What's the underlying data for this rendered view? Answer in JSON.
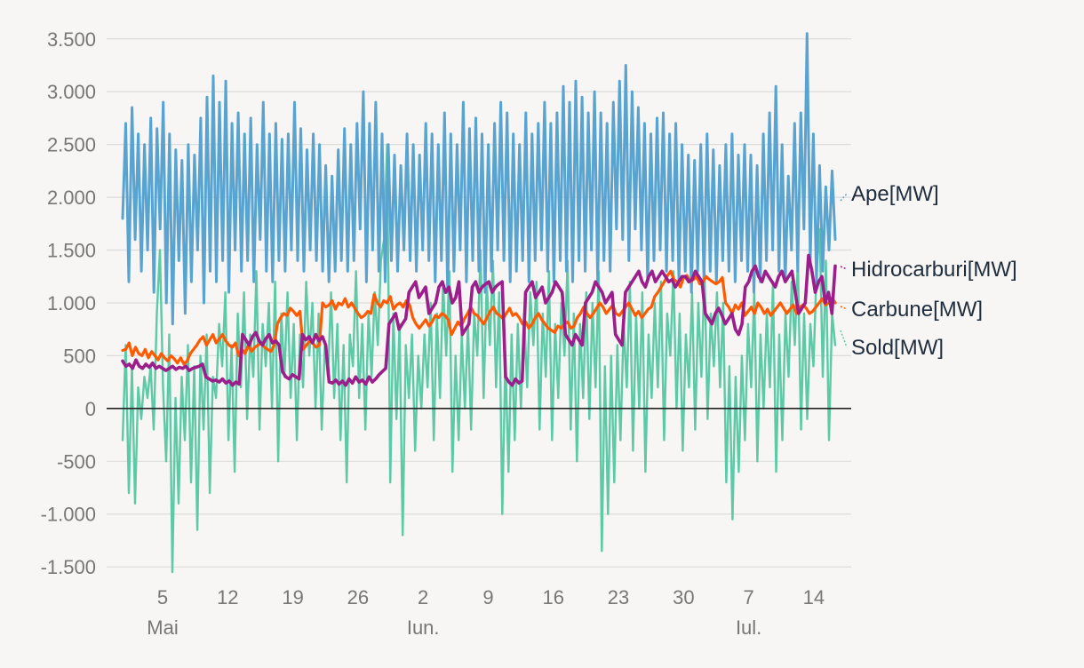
{
  "chart_data": {
    "type": "line",
    "title": "",
    "xlabel": "",
    "ylabel": "",
    "ylim": [
      -1650,
      3700
    ],
    "yticks": [
      -1500,
      -1000,
      -500,
      0,
      500,
      1000,
      1500,
      2000,
      2500,
      3000,
      3500
    ],
    "ytick_labels": [
      "-1.500",
      "-1.000",
      "-500",
      "0",
      "500",
      "1.000",
      "1.500",
      "2.000",
      "2.500",
      "3.000",
      "3.500"
    ],
    "x_range_days": [
      -0.3,
      76.3
    ],
    "x_ticks": [
      {
        "day": 4,
        "label": "5"
      },
      {
        "day": 11,
        "label": "12"
      },
      {
        "day": 18,
        "label": "19"
      },
      {
        "day": 25,
        "label": "26"
      },
      {
        "day": 32,
        "label": "2"
      },
      {
        "day": 39,
        "label": "9"
      },
      {
        "day": 46,
        "label": "16"
      },
      {
        "day": 53,
        "label": "23"
      },
      {
        "day": 60,
        "label": "30"
      },
      {
        "day": 67,
        "label": "7"
      },
      {
        "day": 74,
        "label": "14"
      }
    ],
    "month_labels": [
      {
        "day": 4,
        "label": "Mai"
      },
      {
        "day": 32,
        "label": "Iun."
      },
      {
        "day": 67,
        "label": "Iul."
      }
    ],
    "x_note": "day 0 = 1 Mai; 4-hourly samples (6 per day)",
    "series": [
      {
        "name": "Sold[MW]",
        "color": "#5cc9a7",
        "width": 2.4,
        "values": [
          -300,
          600,
          -800,
          400,
          -900,
          200,
          -100,
          300,
          100,
          400,
          -200,
          900,
          1500,
          200,
          -500,
          700,
          -1550,
          100,
          -900,
          300,
          -300,
          600,
          -700,
          400,
          -1150,
          500,
          -200,
          700,
          -800,
          300,
          100,
          800,
          400,
          1100,
          -300,
          600,
          -600,
          900,
          200,
          1100,
          -100,
          700,
          300,
          1300,
          -200,
          800,
          400,
          1000,
          0,
          1200,
          -500,
          900,
          300,
          1100,
          100,
          800,
          -300,
          700,
          200,
          1200,
          500,
          1000,
          0,
          900,
          -200,
          600,
          300,
          1100,
          100,
          800,
          -300,
          600,
          -700,
          700,
          400,
          1300,
          100,
          800,
          -200,
          900,
          300,
          1100,
          600,
          1400,
          1600,
          2500,
          -700,
          900,
          -100,
          800,
          -1200,
          600,
          100,
          700,
          -400,
          500,
          0,
          700,
          200,
          1000,
          -300,
          900,
          100,
          1200,
          500,
          1300,
          -600,
          500,
          -300,
          700,
          0,
          800,
          -200,
          900,
          500,
          1500,
          100,
          1200,
          600,
          1400,
          200,
          1100,
          -1000,
          500,
          -600,
          700,
          -300,
          800,
          0,
          900,
          200,
          1100,
          600,
          1200,
          -200,
          900,
          300,
          1300,
          -300,
          800,
          100,
          1000,
          500,
          1400,
          -200,
          900,
          -500,
          800,
          100,
          1100,
          -100,
          1000,
          200,
          1300,
          -1350,
          400,
          -1000,
          500,
          -700,
          600,
          -300,
          800,
          200,
          1200,
          -400,
          900,
          0,
          1100,
          -600,
          700,
          100,
          1000,
          200,
          1200,
          -300,
          900,
          500,
          1300,
          0,
          900,
          -400,
          700,
          200,
          1100,
          -200,
          1000,
          300,
          1300,
          -100,
          900,
          400,
          1100,
          200,
          1000,
          -700,
          400,
          -1050,
          300,
          -600,
          500,
          -300,
          800,
          200,
          1100,
          -500,
          700,
          0,
          900,
          200,
          1200,
          -600,
          700,
          -300,
          900,
          300,
          1200,
          600,
          1400,
          -200,
          900,
          -100,
          800,
          400,
          1300,
          1700,
          300,
          1400,
          -300,
          900,
          600
        ]
      },
      {
        "name": "Ape[MW]",
        "color": "#59a3d1",
        "width": 3,
        "values": [
          1800,
          2700,
          1200,
          2850,
          1600,
          2600,
          1300,
          2500,
          1500,
          2750,
          1100,
          2650,
          1700,
          2900,
          1000,
          2600,
          800,
          2450,
          1400,
          2350,
          900,
          2500,
          1200,
          2400,
          1500,
          2750,
          1000,
          2950,
          1300,
          3150,
          1200,
          2900,
          1400,
          3100,
          1100,
          2700,
          1500,
          2800,
          1300,
          2600,
          1400,
          2750,
          1200,
          2500,
          1600,
          2900,
          1300,
          2600,
          1200,
          2700,
          1400,
          2550,
          1300,
          2600,
          1500,
          2900,
          1400,
          2650,
          1300,
          2450,
          1500,
          2600,
          1400,
          2500,
          1300,
          2300,
          1200,
          2200,
          1300,
          2450,
          1400,
          2650,
          1300,
          2500,
          1400,
          2700,
          1700,
          3000,
          1200,
          2700,
          1500,
          2900,
          1300,
          2600,
          1200,
          2500,
          1400,
          2400,
          1300,
          2300,
          1500,
          2600,
          1400,
          2500,
          1300,
          2400,
          1500,
          2700,
          1400,
          2600,
          1200,
          2500,
          1400,
          2800,
          1100,
          2600,
          1300,
          2500,
          1500,
          2900,
          1200,
          2650,
          1400,
          2750,
          1300,
          2600,
          1100,
          2500,
          1300,
          2700,
          1500,
          2900,
          1400,
          2800,
          1200,
          2600,
          1300,
          2500,
          1400,
          2800,
          1200,
          2600,
          1400,
          2700,
          1500,
          2900,
          1300,
          2700,
          1200,
          2800,
          1400,
          3050,
          1300,
          2900,
          1200,
          3100,
          1400,
          2950,
          1300,
          2800,
          1500,
          3000,
          1200,
          2800,
          1400,
          2700,
          1300,
          2900,
          1700,
          3100,
          1600,
          3250,
          1400,
          3000,
          1700,
          2850,
          1500,
          2700,
          1200,
          2600,
          1400,
          2750,
          1500,
          2800,
          1300,
          2600,
          1400,
          2700,
          1200,
          2500,
          1300,
          2400,
          1100,
          2350,
          1300,
          2500,
          1200,
          2600,
          1300,
          2450,
          1200,
          2300,
          1400,
          2500,
          1300,
          2600,
          1200,
          2400,
          1400,
          2500,
          1300,
          2400,
          1100,
          2300,
          1200,
          2600,
          1400,
          2800,
          1500,
          3050,
          1300,
          2500,
          1200,
          2200,
          1500,
          2700,
          1300,
          2800,
          1700,
          3550,
          1400,
          2600,
          1200,
          2300,
          1300,
          2100,
          1500,
          2250,
          1600
        ]
      },
      {
        "name": "Carbune[MW]",
        "color": "#ff5a00",
        "width": 3.2,
        "values": [
          550,
          560,
          620,
          500,
          580,
          520,
          500,
          560,
          480,
          540,
          500,
          460,
          520,
          480,
          450,
          500,
          470,
          430,
          480,
          420,
          450,
          520,
          560,
          600,
          650,
          680,
          600,
          650,
          700,
          620,
          660,
          700,
          640,
          600,
          580,
          620,
          500,
          560,
          520,
          600,
          540,
          580,
          600,
          620,
          580,
          560,
          540,
          600,
          800,
          860,
          900,
          880,
          950,
          920,
          880,
          920,
          560,
          600,
          640,
          620,
          580,
          600,
          1000,
          960,
          980,
          1020,
          940,
          1000,
          980,
          1040,
          960,
          1000,
          950,
          900,
          860,
          880,
          920,
          900,
          1080,
          1000,
          960,
          1020,
          1000,
          1060,
          940,
          980,
          1000,
          960,
          1020,
          980,
          860,
          800,
          760,
          800,
          840,
          780,
          820,
          880,
          860,
          900,
          880,
          840,
          700,
          760,
          820,
          780,
          850,
          900,
          960,
          900,
          880,
          840,
          800,
          860,
          920,
          960,
          900,
          880,
          850,
          900,
          950,
          880,
          900,
          860,
          800,
          820,
          760,
          800,
          860,
          900,
          840,
          800,
          760,
          740,
          720,
          780,
          760,
          800,
          820,
          760,
          780,
          860,
          900,
          960,
          900,
          860,
          900,
          950,
          1000,
          960,
          900,
          940,
          980,
          900,
          880,
          920,
          960,
          1000,
          940,
          880,
          920,
          860,
          900,
          940,
          960,
          1060,
          1100,
          1150,
          1200,
          1260,
          1300,
          1220,
          1200,
          1150,
          1240,
          1260,
          1200,
          1220,
          1250,
          1180,
          1200,
          1250,
          1220,
          1200,
          1180,
          1200,
          1240,
          1000,
          960,
          900,
          980,
          940,
          1000,
          880,
          920,
          960,
          900,
          1000,
          960,
          900,
          940,
          880,
          920,
          960,
          1000,
          950,
          900,
          940,
          980,
          900,
          960,
          980,
          950,
          900,
          920,
          960,
          1000,
          1040,
          980,
          1000,
          1050,
          1000
        ]
      },
      {
        "name": "Hidrocarburi[MW]",
        "color": "#9b1e8a",
        "width": 3.6,
        "values": [
          450,
          400,
          420,
          380,
          460,
          400,
          380,
          420,
          390,
          430,
          380,
          400,
          380,
          360,
          380,
          400,
          370,
          390,
          380,
          400,
          360,
          380,
          390,
          400,
          420,
          300,
          280,
          260,
          270,
          250,
          280,
          240,
          260,
          220,
          250,
          230,
          700,
          650,
          600,
          680,
          720,
          640,
          600,
          660,
          700,
          620,
          640,
          600,
          350,
          300,
          280,
          320,
          300,
          280,
          700,
          650,
          680,
          620,
          700,
          640,
          680,
          600,
          250,
          240,
          270,
          230,
          260,
          220,
          280,
          240,
          300,
          250,
          270,
          230,
          300,
          250,
          280,
          320,
          350,
          380,
          800,
          850,
          900,
          750,
          800,
          850,
          1100,
          1150,
          1200,
          1050,
          1100,
          1150,
          900,
          950,
          1000,
          1150,
          1200,
          1100,
          1150,
          1000,
          1050,
          1200,
          700,
          750,
          800,
          1150,
          1200,
          1100,
          1150,
          1180,
          1200,
          1100,
          1150,
          1180,
          1200,
          300,
          250,
          220,
          280,
          240,
          260,
          1100,
          1150,
          1200,
          1050,
          1100,
          1150,
          1000,
          1050,
          1100,
          1200,
          1150,
          1100,
          700,
          650,
          600,
          700,
          650,
          600,
          1000,
          1050,
          1100,
          1200,
          1150,
          1100,
          1000,
          1050,
          1100,
          700,
          650,
          600,
          1100,
          1150,
          1200,
          1250,
          1300,
          1200,
          1150,
          1250,
          1300,
          1200,
          1250,
          1300,
          1250,
          1200,
          1220,
          1150,
          1200,
          1250,
          1250,
          1200,
          1220,
          1300,
          1250,
          1200,
          900,
          850,
          800,
          900,
          950,
          880,
          800,
          850,
          900,
          750,
          700,
          800,
          1150,
          1200,
          1300,
          1350,
          1250,
          1200,
          1300,
          1250,
          1200,
          1150,
          1250,
          1300,
          1200,
          1250,
          1300,
          1100,
          900,
          950,
          1000,
          1450,
          1300,
          1100,
          1200,
          1250,
          1000,
          1100,
          900,
          1350
        ]
      }
    ],
    "legend": [
      {
        "label": "Ape[MW]",
        "color": "#59a3d1",
        "position": "right"
      },
      {
        "label": "Hidrocarburi[MW]",
        "color": "#9b1e8a",
        "position": "right"
      },
      {
        "label": "Carbune[MW]",
        "color": "#ff5a00",
        "position": "right"
      },
      {
        "label": "Sold[MW]",
        "color": "#5cc9a7",
        "position": "right"
      }
    ]
  }
}
